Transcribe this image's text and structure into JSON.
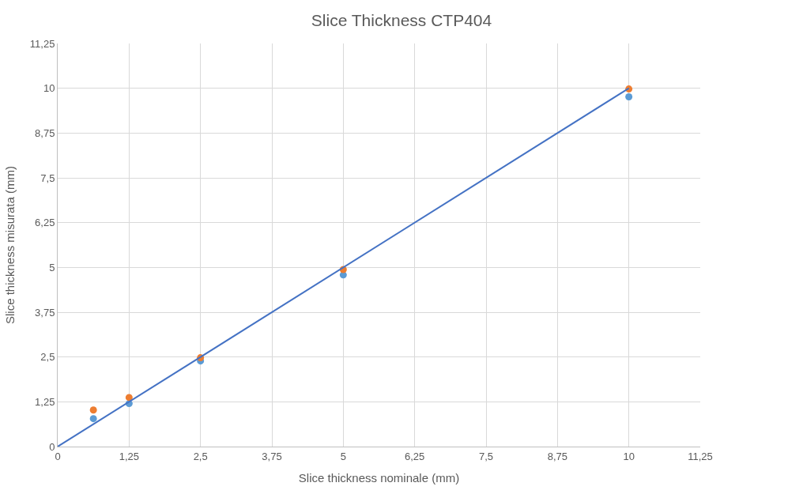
{
  "chart_data": {
    "type": "scatter",
    "title": "Slice Thickness CTP404",
    "xlabel": "Slice thickness nominale (mm)",
    "ylabel": "Slice thickness misurata (mm)",
    "series": [
      {
        "color": "#5b9bd5",
        "x": [
          0.625,
          1.25,
          2.5,
          5,
          10
        ],
        "values": [
          0.78,
          1.2,
          2.39,
          4.79,
          9.76
        ]
      },
      {
        "color": "#ed7d31",
        "x": [
          0.625,
          1.25,
          2.5,
          5,
          10
        ],
        "values": [
          1.02,
          1.37,
          2.48,
          4.94,
          9.98
        ]
      },
      {
        "type": "line",
        "color": "#4472c4",
        "x": [
          0,
          10
        ],
        "values": [
          0,
          10
        ],
        "marker": "none"
      }
    ],
    "xlim": [
      0,
      11.25
    ],
    "ylim": [
      0,
      11.25
    ],
    "xticks": [
      0,
      {
        "value": 1.25,
        "label": "1,25"
      },
      {
        "value": 2.5,
        "label": "2,5"
      },
      {
        "value": 3.75,
        "label": "3,75"
      },
      5,
      {
        "value": 6.25,
        "label": "6,25"
      },
      {
        "value": 7.5,
        "label": "7,5"
      },
      {
        "value": 8.75,
        "label": "8,75"
      },
      10,
      {
        "value": 11.25,
        "label": "11,25"
      }
    ],
    "yticks": [
      0,
      {
        "value": 1.25,
        "label": "1,25"
      },
      {
        "value": 2.5,
        "label": "2,5"
      },
      {
        "value": 3.75,
        "label": "3,75"
      },
      5,
      {
        "value": 6.25,
        "label": "6,25"
      },
      {
        "value": 7.5,
        "label": "7,5"
      },
      {
        "value": 8.75,
        "label": "8,75"
      },
      10,
      {
        "value": 11.25,
        "label": "11,25"
      }
    ],
    "grid": true,
    "marker": "circle"
  }
}
